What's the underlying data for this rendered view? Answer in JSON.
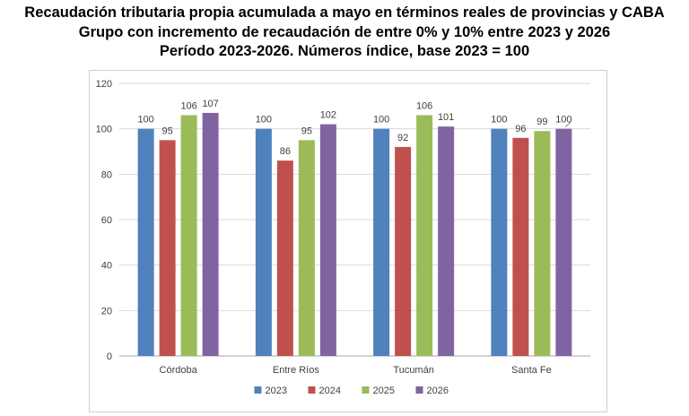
{
  "titles": {
    "line1": "Recaudación tributaria propia acumulada a mayo en términos reales de provincias y CABA",
    "line2": "Grupo con incremento de recaudación de entre 0% y 10% entre 2023 y 2026",
    "line3": "Período 2023-2026. Números índice, base 2023 = 100"
  },
  "chart_data": {
    "type": "bar",
    "title": "Recaudación tributaria propia acumulada a mayo en términos reales de provincias y CABA",
    "subtitle": "Grupo con incremento de recaudación de entre 0% y 10% entre 2023 y 2026 — Período 2023-2026. Números índice, base 2023 = 100",
    "xlabel": "",
    "ylabel": "",
    "categories": [
      "Córdoba",
      "Entre Ríos",
      "Tucumán",
      "Santa Fe"
    ],
    "series": [
      {
        "name": "2023",
        "color": "#4f81bd",
        "values": [
          100,
          100,
          100,
          100
        ]
      },
      {
        "name": "2024",
        "color": "#c0504d",
        "values": [
          95,
          86,
          92,
          96
        ]
      },
      {
        "name": "2025",
        "color": "#9bbb59",
        "values": [
          106,
          95,
          106,
          99
        ]
      },
      {
        "name": "2026",
        "color": "#8064a2",
        "values": [
          107,
          102,
          101,
          100
        ]
      }
    ],
    "ylim": [
      0,
      120
    ],
    "yticks": [
      0,
      20,
      40,
      60,
      80,
      100,
      120
    ],
    "grid": true,
    "legend_position": "bottom"
  }
}
